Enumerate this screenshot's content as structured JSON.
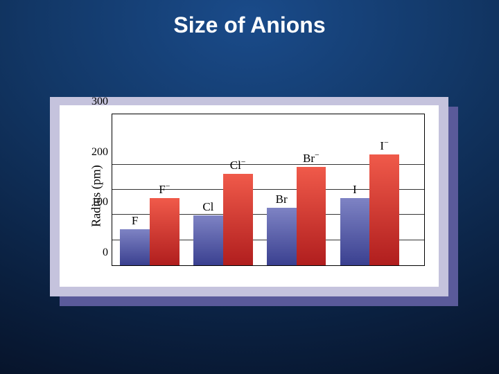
{
  "slide": {
    "title": "Size of Anions",
    "title_fontsize": 32,
    "title_color": "#ffffff",
    "background_gradient": [
      "#1a4b8a",
      "#123766",
      "#0a1f3e",
      "#050d1f"
    ]
  },
  "chart": {
    "type": "bar",
    "ylabel": "Radius (pm)",
    "ylabel_fontsize": 18,
    "ylim": [
      0,
      300
    ],
    "ytick_step": 100,
    "yticks": [
      0,
      100,
      200,
      300
    ],
    "minor_gridlines_at": [
      50,
      150
    ],
    "tick_fontsize": 16,
    "bar_label_fontsize": 17,
    "panel_outer_color": "#c5c3dd",
    "panel_shadow_color": "#5a5a9a",
    "plot_background": "#ffffff",
    "gridline_color": "#333333",
    "neutral_gradient": [
      "#7e83c4",
      "#3a4090"
    ],
    "anion_gradient": [
      "#f05a4a",
      "#b01e1e"
    ],
    "group_gap_pct": 4.5,
    "bar_width_pct": 9.5,
    "left_margin_pct": 2.5,
    "groups": [
      {
        "neutral_label": "F",
        "anion_label": "F⁻",
        "neutral_value": 71,
        "anion_value": 133
      },
      {
        "neutral_label": "Cl",
        "anion_label": "Cl⁻",
        "neutral_value": 99,
        "anion_value": 181
      },
      {
        "neutral_label": "Br",
        "anion_label": "Br⁻",
        "neutral_value": 114,
        "anion_value": 196
      },
      {
        "neutral_label": "I",
        "anion_label": "I⁻",
        "neutral_value": 133,
        "anion_value": 220
      }
    ]
  }
}
